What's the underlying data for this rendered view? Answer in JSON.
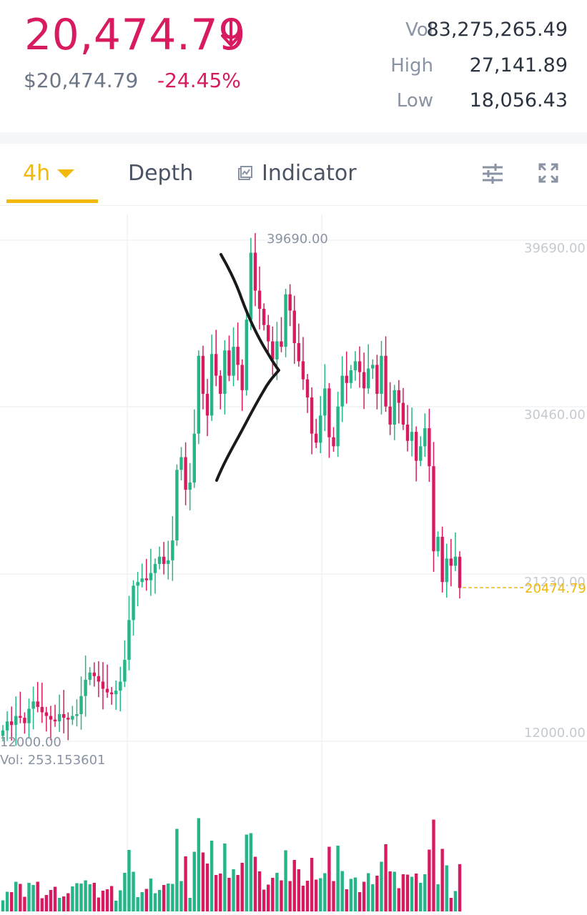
{
  "header": {
    "last_price": "20,474.79",
    "price_direction_icon": "arrow-down-icon",
    "fiat_price": "$20,474.79",
    "change_pct": "-24.45%",
    "stats": [
      {
        "label": "Vol",
        "value": "83,275,265.49"
      },
      {
        "label": "High",
        "value": "27,141.89"
      },
      {
        "label": "Low",
        "value": "18,056.43"
      }
    ]
  },
  "tabs": {
    "interval": "4h",
    "depth": "Depth",
    "indicator": "Indicator",
    "indicator_icon": "chart-indicator-icon",
    "settings_icon": "sliders-icon",
    "fullscreen_icon": "fullscreen-icon"
  },
  "colors": {
    "up": "#26b489",
    "down": "#d81b60",
    "accent": "#f0b90b",
    "text_secondary": "#6c7686"
  },
  "chart_data": {
    "type": "candlestick",
    "y_axis_labels": [
      "39690.00",
      "30460.00",
      "21230.00",
      "12000.00"
    ],
    "max_label": "39690.00",
    "min_label": "12000.00",
    "last_price_label": "20474.79",
    "volume_label": "Vol: 253.153601",
    "annotation": "hand-drawn angle mark near peak"
  }
}
